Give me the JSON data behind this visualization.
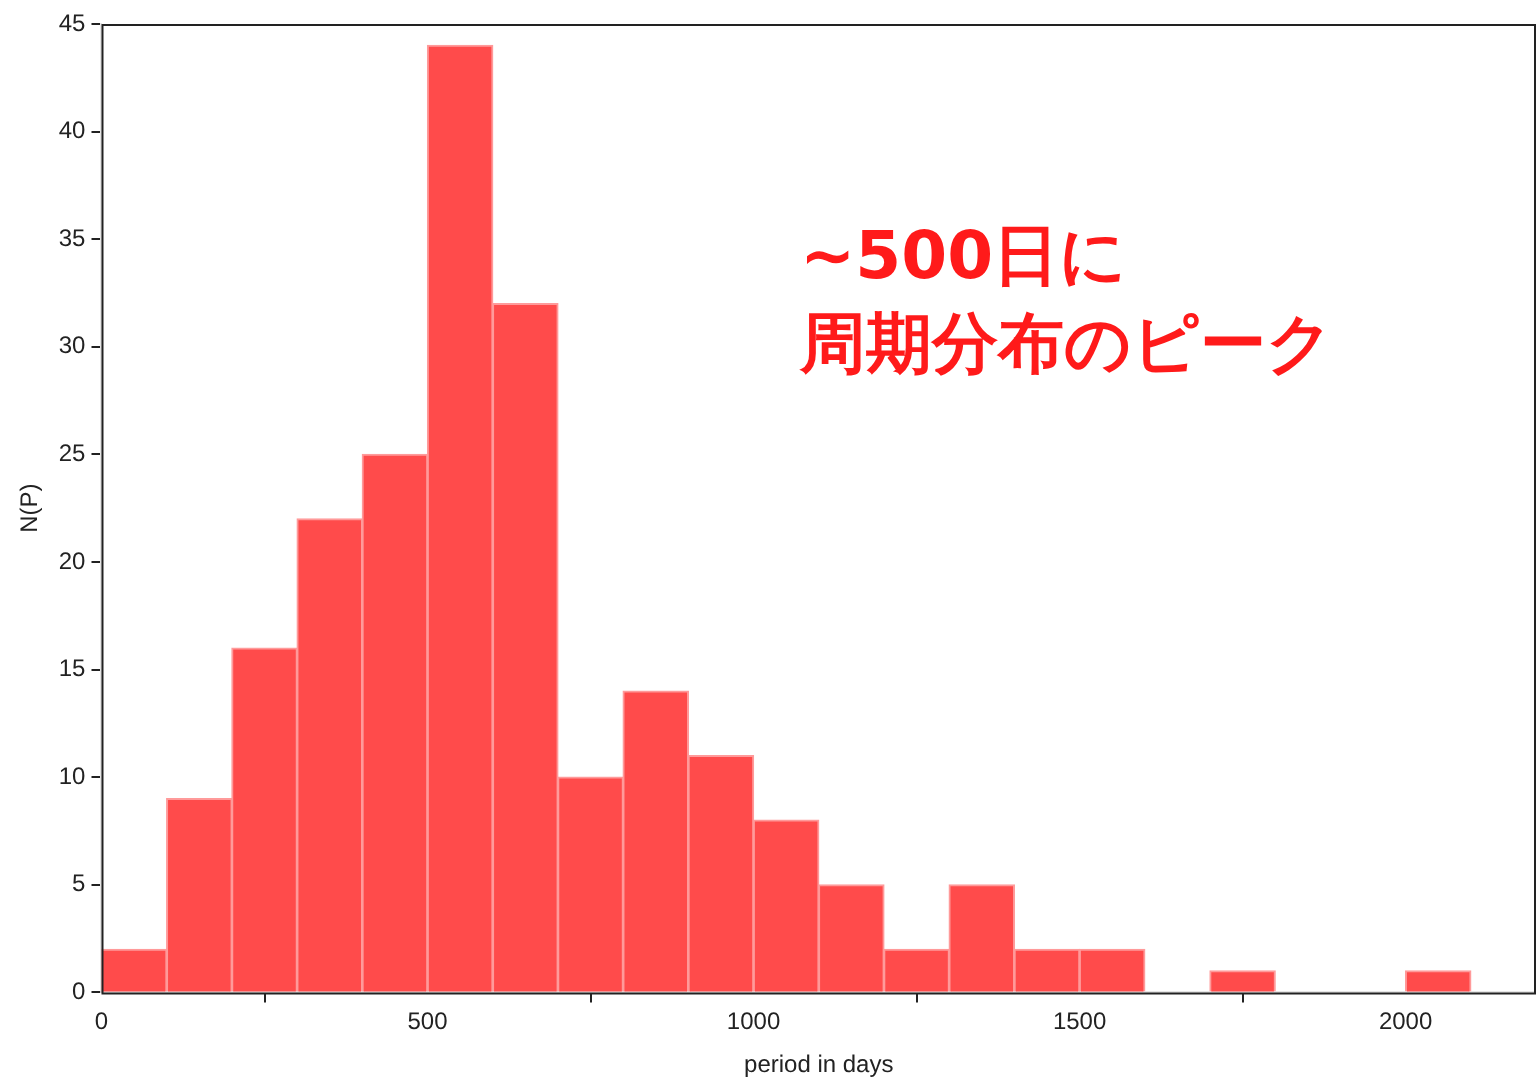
{
  "chart_data": {
    "type": "histogram",
    "xlabel": "period in days",
    "ylabel": "N(P)",
    "bins": [
      0,
      100,
      200,
      300,
      400,
      500,
      600,
      700,
      800,
      900,
      1000,
      1100,
      1200,
      1300,
      1400,
      1500,
      1600,
      1700,
      1800,
      1900,
      2000,
      2100
    ],
    "values": [
      2,
      9,
      16,
      22,
      25,
      44,
      32,
      10,
      14,
      11,
      8,
      5,
      2,
      5,
      2,
      2,
      0,
      1,
      0,
      0,
      1
    ],
    "color": "#ff4b4b",
    "xlim": [
      0,
      2200
    ],
    "xticks": [
      0,
      500,
      1000,
      1500,
      2000
    ],
    "ylim": [
      0,
      45
    ],
    "yticks": [
      0,
      5,
      10,
      15,
      20,
      25,
      30,
      35,
      40,
      45
    ],
    "grid": false,
    "legend": false,
    "annotations": [
      "~500日に",
      "周期分布のピーク"
    ]
  }
}
